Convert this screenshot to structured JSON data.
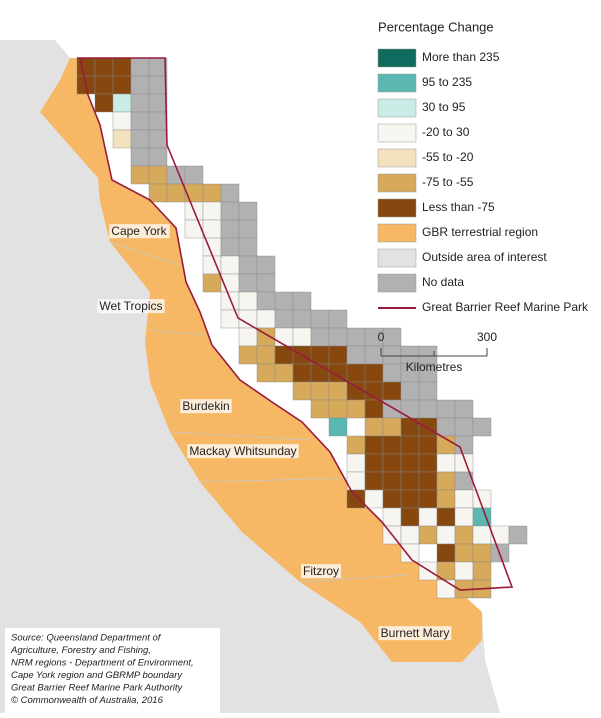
{
  "legend": {
    "title": "Percentage Change",
    "items": [
      {
        "label": "More than 235",
        "color": "#0f6b5e"
      },
      {
        "label": "95 to 235",
        "color": "#5bb8b0"
      },
      {
        "label": "30 to 95",
        "color": "#c9ece6"
      },
      {
        "label": "-20 to 30",
        "color": "#f6f5f0"
      },
      {
        "label": "-55 to -20",
        "color": "#f3e2bd"
      },
      {
        "label": "-75 to -55",
        "color": "#d6a95b"
      },
      {
        "label": "Less than -75",
        "color": "#86480f"
      },
      {
        "label": "GBR terrestrial region",
        "color": "#f6b865"
      },
      {
        "label": "Outside area of interest",
        "color": "#e2e2e2"
      },
      {
        "label": "No data",
        "color": "#b1b1b1"
      }
    ],
    "boundary": {
      "label": "Great Barrier Reef Marine Park",
      "color": "#9a1b3b"
    }
  },
  "scale": {
    "ticks": [
      0,
      300
    ],
    "unit": "Kilometres"
  },
  "regions": [
    "Cape York",
    "Wet Tropics",
    "Burdekin",
    "Mackay Whitsunday",
    "Fitzroy",
    "Burnett Mary"
  ],
  "source": [
    "Source: Queensland Department of",
    "Agriculture, Forestry and Fishing,",
    "NRM regions - Department of Environment,",
    "Cape York region and GBRMP boundary",
    "Great Barrier Reef Marine Park Authority",
    "© Commonwealth of Australia, 2016"
  ]
}
